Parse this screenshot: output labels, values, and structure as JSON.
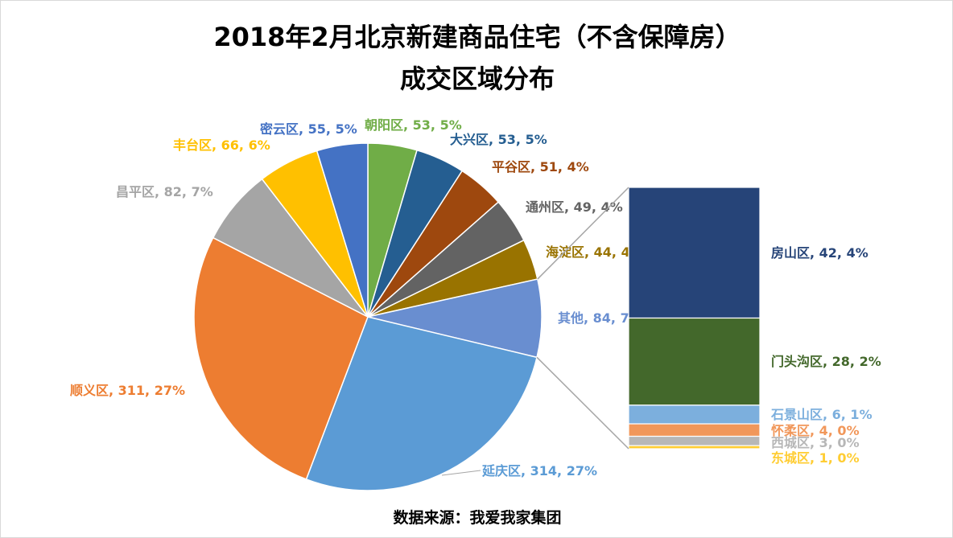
{
  "chart_data": {
    "type": "pie",
    "title_line1": "2018年2月北京新建商品住宅（不含保障房）",
    "title_line2": "成交区域分布",
    "source": "数据来源：我爱我家集团",
    "main_slices": [
      {
        "name": "朝阳区",
        "value": 53,
        "pct": "5%",
        "color": "#70AD47"
      },
      {
        "name": "大兴区",
        "value": 53,
        "pct": "5%",
        "color": "#255E91"
      },
      {
        "name": "平谷区",
        "value": 51,
        "pct": "4%",
        "color": "#9E480E"
      },
      {
        "name": "通州区",
        "value": 49,
        "pct": "4%",
        "color": "#636363"
      },
      {
        "name": "海淀区",
        "value": 44,
        "pct": "4%",
        "color": "#997300"
      },
      {
        "name": "其他",
        "value": 84,
        "pct": "7%",
        "color": "#698ED0"
      },
      {
        "name": "延庆区",
        "value": 314,
        "pct": "27%",
        "color": "#5B9BD5"
      },
      {
        "name": "顺义区",
        "value": 311,
        "pct": "27%",
        "color": "#ED7D31"
      },
      {
        "name": "昌平区",
        "value": 82,
        "pct": "7%",
        "color": "#A5A5A5"
      },
      {
        "name": "丰台区",
        "value": 66,
        "pct": "6%",
        "color": "#FFC000"
      },
      {
        "name": "密云区",
        "value": 55,
        "pct": "5%",
        "color": "#4472C4"
      }
    ],
    "other_breakdown": [
      {
        "name": "房山区",
        "value": 42,
        "pct": "4%",
        "color": "#264478"
      },
      {
        "name": "门头沟区",
        "value": 28,
        "pct": "2%",
        "color": "#43682B"
      },
      {
        "name": "石景山区",
        "value": 6,
        "pct": "1%",
        "color": "#7CAFDD"
      },
      {
        "name": "怀柔区",
        "value": 4,
        "pct": "0%",
        "color": "#F1975A"
      },
      {
        "name": "西城区",
        "value": 3,
        "pct": "0%",
        "color": "#B7B7B7"
      },
      {
        "name": "东城区",
        "value": 1,
        "pct": "0%",
        "color": "#FFCD33"
      }
    ]
  }
}
